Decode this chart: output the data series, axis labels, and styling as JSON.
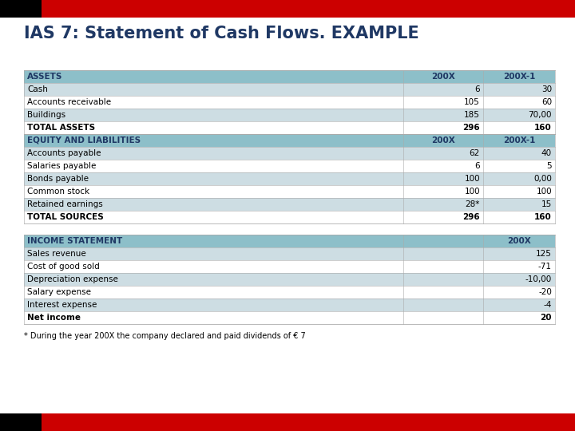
{
  "title": "IAS 7: Statement of Cash Flows. EXAMPLE",
  "title_color": "#1F3864",
  "title_fontsize": 15,
  "bg_color": "#FFFFFF",
  "header_bar_color": "#CC0000",
  "black_bar_color": "#000000",
  "section_header_bg": "#8DBFC9",
  "section_header_text_color": "#1F3864",
  "row_alt_color": "#CDDDE3",
  "row_base_color": "#FFFFFF",
  "col_header_text": "#1F3864",
  "assets_section": {
    "header": "ASSETS",
    "col1": "200X",
    "col2": "200X-1",
    "rows": [
      {
        "label": "Cash",
        "v1": "6",
        "v2": "30",
        "bold": false
      },
      {
        "label": "Accounts receivable",
        "v1": "105",
        "v2": "60",
        "bold": false
      },
      {
        "label": "Buildings",
        "v1": "185",
        "v2": "70,00",
        "bold": false
      },
      {
        "label": "TOTAL ASSETS",
        "v1": "296",
        "v2": "160",
        "bold": true
      }
    ]
  },
  "equity_section": {
    "header": "EQUITY AND LIABILITIES",
    "col1": "200X",
    "col2": "200X-1",
    "rows": [
      {
        "label": "Accounts payable",
        "v1": "62",
        "v2": "40",
        "bold": false
      },
      {
        "label": "Salaries payable",
        "v1": "6",
        "v2": "5",
        "bold": false
      },
      {
        "label": "Bonds payable",
        "v1": "100",
        "v2": "0,00",
        "bold": false
      },
      {
        "label": "Common stock",
        "v1": "100",
        "v2": "100",
        "bold": false
      },
      {
        "label": "Retained earnings",
        "v1": "28*",
        "v2": "15",
        "bold": false
      },
      {
        "label": "TOTAL SOURCES",
        "v1": "296",
        "v2": "160",
        "bold": true
      }
    ]
  },
  "income_section": {
    "header": "INCOME STATEMENT",
    "col1": "",
    "col2": "200X",
    "rows": [
      {
        "label": "Sales revenue",
        "v1": "",
        "v2": "125",
        "bold": false
      },
      {
        "label": "Cost of good sold",
        "v1": "",
        "v2": "-71",
        "bold": false
      },
      {
        "label": "Depreciation expense",
        "v1": "",
        "v2": "-10,00",
        "bold": false
      },
      {
        "label": "Salary expense",
        "v1": "",
        "v2": "-20",
        "bold": false
      },
      {
        "label": "Interest expense",
        "v1": "",
        "v2": "-4",
        "bold": false
      },
      {
        "label": "Net income",
        "v1": "",
        "v2": "20",
        "bold": true
      }
    ]
  },
  "footnote": "* During the year 200X the company declared and paid dividends of € 7"
}
